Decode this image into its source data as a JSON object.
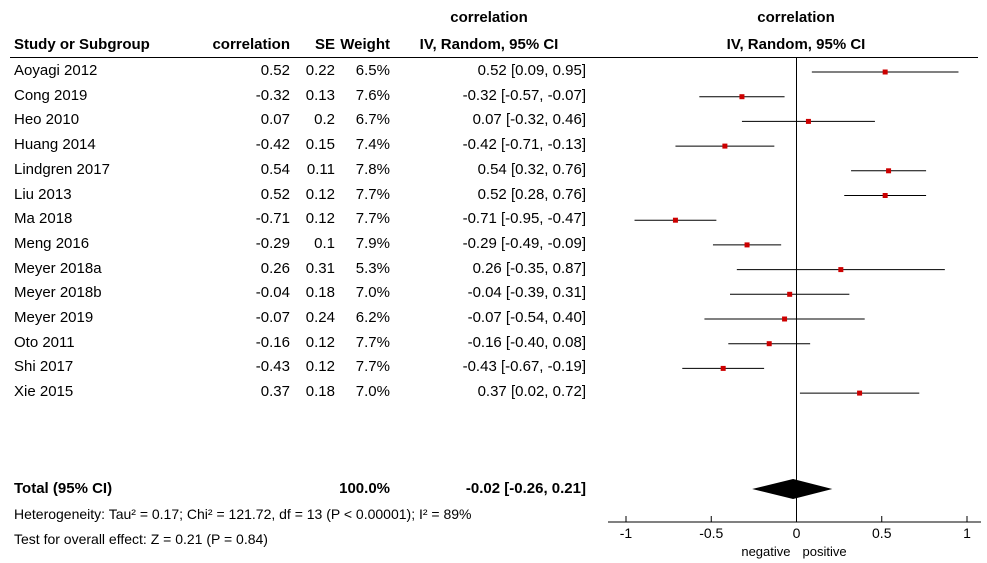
{
  "header": {
    "super_left": "correlation",
    "super_right": "correlation",
    "study": "Study or Subgroup",
    "corr": "correlation",
    "se": "SE",
    "weight": "Weight",
    "ci": "IV, Random, 95% CI",
    "plot": "IV, Random, 95% CI"
  },
  "total": {
    "label": "Total (95% CI)",
    "weight": "100.0%",
    "ci": "-0.02 [-0.26, 0.21]"
  },
  "footer": {
    "heterogeneity": "Heterogeneity: Tau² = 0.17; Chi² = 121.72, df = 13 (P < 0.00001); I² = 89%",
    "overall": "Test for overall effect: Z = 0.21 (P = 0.84)"
  },
  "chart_data": {
    "type": "forest",
    "xlim": [
      -1,
      1
    ],
    "xticks": [
      "-1",
      "-0.5",
      "0",
      "0.5",
      "1"
    ],
    "xticks_values": [
      -1,
      -0.5,
      0,
      0.5,
      1
    ],
    "axis_left_label": "negative",
    "axis_right_label": "positive",
    "marker_color": "#cc0000",
    "studies": [
      {
        "name": "Aoyagi 2012",
        "corr": "0.52",
        "se": "0.22",
        "weight": "6.5%",
        "ci": "0.52 [0.09, 0.95]",
        "est": 0.52,
        "lo": 0.09,
        "hi": 0.95
      },
      {
        "name": "Cong 2019",
        "corr": "-0.32",
        "se": "0.13",
        "weight": "7.6%",
        "ci": "-0.32 [-0.57, -0.07]",
        "est": -0.32,
        "lo": -0.57,
        "hi": -0.07
      },
      {
        "name": "Heo 2010",
        "corr": "0.07",
        "se": "0.2",
        "weight": "6.7%",
        "ci": "0.07 [-0.32, 0.46]",
        "est": 0.07,
        "lo": -0.32,
        "hi": 0.46
      },
      {
        "name": "Huang 2014",
        "corr": "-0.42",
        "se": "0.15",
        "weight": "7.4%",
        "ci": "-0.42 [-0.71, -0.13]",
        "est": -0.42,
        "lo": -0.71,
        "hi": -0.13
      },
      {
        "name": "Lindgren 2017",
        "corr": "0.54",
        "se": "0.11",
        "weight": "7.8%",
        "ci": "0.54 [0.32, 0.76]",
        "est": 0.54,
        "lo": 0.32,
        "hi": 0.76
      },
      {
        "name": "Liu 2013",
        "corr": "0.52",
        "se": "0.12",
        "weight": "7.7%",
        "ci": "0.52 [0.28, 0.76]",
        "est": 0.52,
        "lo": 0.28,
        "hi": 0.76
      },
      {
        "name": "Ma 2018",
        "corr": "-0.71",
        "se": "0.12",
        "weight": "7.7%",
        "ci": "-0.71 [-0.95, -0.47]",
        "est": -0.71,
        "lo": -0.95,
        "hi": -0.47
      },
      {
        "name": "Meng 2016",
        "corr": "-0.29",
        "se": "0.1",
        "weight": "7.9%",
        "ci": "-0.29 [-0.49, -0.09]",
        "est": -0.29,
        "lo": -0.49,
        "hi": -0.09
      },
      {
        "name": "Meyer 2018a",
        "corr": "0.26",
        "se": "0.31",
        "weight": "5.3%",
        "ci": "0.26 [-0.35, 0.87]",
        "est": 0.26,
        "lo": -0.35,
        "hi": 0.87
      },
      {
        "name": "Meyer 2018b",
        "corr": "-0.04",
        "se": "0.18",
        "weight": "7.0%",
        "ci": "-0.04 [-0.39, 0.31]",
        "est": -0.04,
        "lo": -0.39,
        "hi": 0.31
      },
      {
        "name": "Meyer 2019",
        "corr": "-0.07",
        "se": "0.24",
        "weight": "6.2%",
        "ci": "-0.07 [-0.54, 0.40]",
        "est": -0.07,
        "lo": -0.54,
        "hi": 0.4
      },
      {
        "name": "Oto 2011",
        "corr": "-0.16",
        "se": "0.12",
        "weight": "7.7%",
        "ci": "-0.16 [-0.40, 0.08]",
        "est": -0.16,
        "lo": -0.4,
        "hi": 0.08
      },
      {
        "name": "Shi 2017",
        "corr": "-0.43",
        "se": "0.12",
        "weight": "7.7%",
        "ci": "-0.43 [-0.67, -0.19]",
        "est": -0.43,
        "lo": -0.67,
        "hi": -0.19
      },
      {
        "name": "Xie 2015",
        "corr": "0.37",
        "se": "0.18",
        "weight": "7.0%",
        "ci": "0.37 [0.02, 0.72]",
        "est": 0.37,
        "lo": 0.02,
        "hi": 0.72
      }
    ],
    "pooled": {
      "est": -0.02,
      "lo": -0.26,
      "hi": 0.21
    }
  }
}
